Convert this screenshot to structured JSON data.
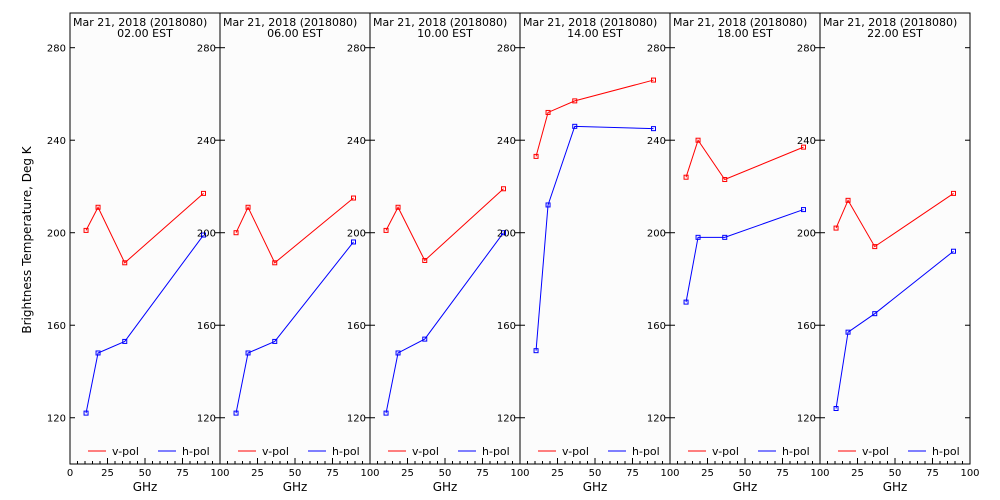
{
  "ylabel": "Brightness Temperature, Deg K",
  "xlabel": "GHz",
  "colors": {
    "vpol": "#ff0000",
    "hpol": "#0000ff",
    "axis": "#000000",
    "background": "#fcfcfc"
  },
  "chart_data": [
    {
      "type": "line",
      "title": "Mar 21, 2018 (2018080)",
      "subtitle": "02.00 EST",
      "x": [
        10.7,
        18.7,
        36.5,
        89.0
      ],
      "xlim": [
        0,
        100
      ],
      "ylim": [
        100,
        295
      ],
      "yticks": [
        "120",
        "160",
        "200",
        "240",
        "280"
      ],
      "xticks": [
        "0",
        "25",
        "50",
        "75",
        "100"
      ],
      "legend": "bottom",
      "series": [
        {
          "name": "v-pol",
          "values": [
            201,
            211,
            187,
            217
          ]
        },
        {
          "name": "h-pol",
          "values": [
            122,
            148,
            153,
            199
          ]
        }
      ]
    },
    {
      "type": "line",
      "title": "Mar 21, 2018 (2018080)",
      "subtitle": "06.00 EST",
      "x": [
        10.7,
        18.7,
        36.5,
        89.0
      ],
      "xlim": [
        0,
        100
      ],
      "ylim": [
        100,
        295
      ],
      "yticks": [
        "120",
        "160",
        "200",
        "240",
        "280"
      ],
      "xticks": [
        "",
        "25",
        "50",
        "75",
        "100"
      ],
      "legend": "bottom",
      "series": [
        {
          "name": "v-pol",
          "values": [
            200,
            211,
            187,
            215
          ]
        },
        {
          "name": "h-pol",
          "values": [
            122,
            148,
            153,
            196
          ]
        }
      ]
    },
    {
      "type": "line",
      "title": "Mar 21, 2018 (2018080)",
      "subtitle": "10.00 EST",
      "x": [
        10.7,
        18.7,
        36.5,
        89.0
      ],
      "xlim": [
        0,
        100
      ],
      "ylim": [
        100,
        295
      ],
      "yticks": [
        "120",
        "160",
        "200",
        "240",
        "280"
      ],
      "xticks": [
        "",
        "25",
        "50",
        "75",
        "100"
      ],
      "legend": "bottom",
      "series": [
        {
          "name": "v-pol",
          "values": [
            201,
            211,
            188,
            219
          ]
        },
        {
          "name": "h-pol",
          "values": [
            122,
            148,
            154,
            200
          ]
        }
      ]
    },
    {
      "type": "line",
      "title": "Mar 21, 2018 (2018080)",
      "subtitle": "14.00 EST",
      "x": [
        10.7,
        18.7,
        36.5,
        89.0
      ],
      "xlim": [
        0,
        100
      ],
      "ylim": [
        100,
        295
      ],
      "yticks": [
        "120",
        "160",
        "200",
        "240",
        "280"
      ],
      "xticks": [
        "",
        "25",
        "50",
        "75",
        "100"
      ],
      "legend": "bottom",
      "series": [
        {
          "name": "v-pol",
          "values": [
            233,
            252,
            257,
            266
          ]
        },
        {
          "name": "h-pol",
          "values": [
            149,
            212,
            246,
            245
          ]
        }
      ]
    },
    {
      "type": "line",
      "title": "Mar 21, 2018 (2018080)",
      "subtitle": "18.00 EST",
      "x": [
        10.7,
        18.7,
        36.5,
        89.0
      ],
      "xlim": [
        0,
        100
      ],
      "ylim": [
        100,
        295
      ],
      "yticks": [
        "120",
        "160",
        "200",
        "240",
        "280"
      ],
      "xticks": [
        "",
        "25",
        "50",
        "75",
        "100"
      ],
      "legend": "bottom",
      "series": [
        {
          "name": "v-pol",
          "values": [
            224,
            240,
            223,
            237
          ]
        },
        {
          "name": "h-pol",
          "values": [
            170,
            198,
            198,
            210
          ]
        }
      ]
    },
    {
      "type": "line",
      "title": "Mar 21, 2018 (2018080)",
      "subtitle": "22.00 EST",
      "x": [
        10.7,
        18.7,
        36.5,
        89.0
      ],
      "xlim": [
        0,
        100
      ],
      "ylim": [
        100,
        295
      ],
      "yticks": [
        "120",
        "160",
        "200",
        "240",
        "280"
      ],
      "xticks": [
        "",
        "25",
        "50",
        "75",
        "100"
      ],
      "legend": "bottom",
      "series": [
        {
          "name": "v-pol",
          "values": [
            202,
            214,
            194,
            217
          ]
        },
        {
          "name": "h-pol",
          "values": [
            124,
            157,
            165,
            192
          ]
        }
      ]
    }
  ]
}
